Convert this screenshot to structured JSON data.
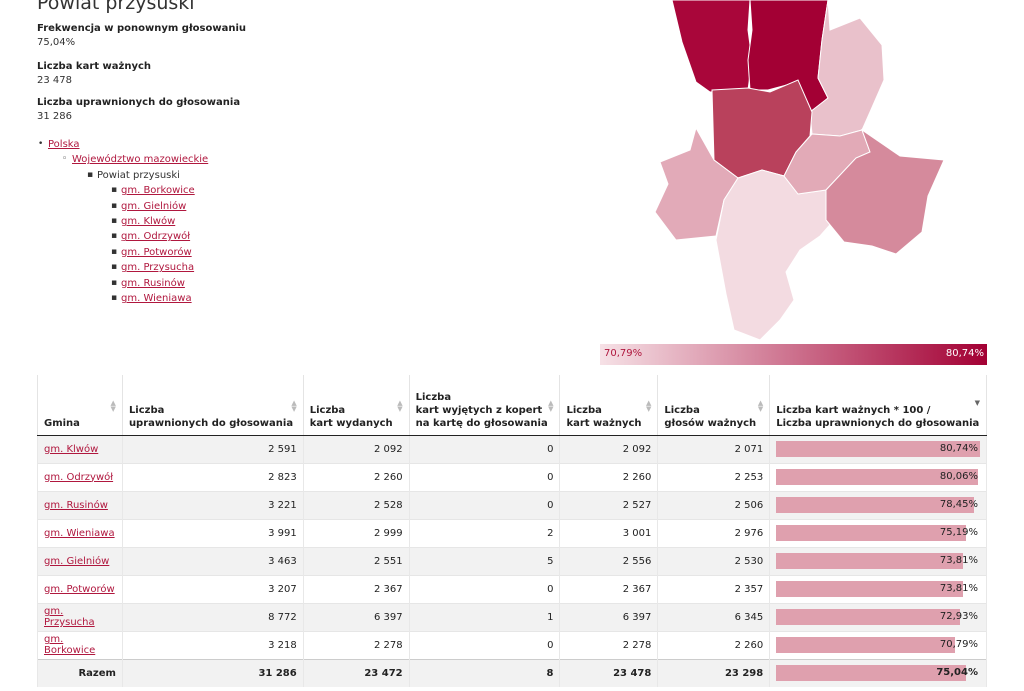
{
  "page_title": "Powiat przysuski",
  "stats": [
    {
      "label": "Frekwencja w ponownym głosowaniu",
      "value": "75,04%"
    },
    {
      "label": "Liczba kart ważnych",
      "value": "23 478"
    },
    {
      "label": "Liczba uprawnionych do głosowania",
      "value": "31 286"
    }
  ],
  "breadcrumb": {
    "country": "Polska",
    "voivodeship": "Województwo mazowieckie",
    "county": "Powiat przysuski",
    "gminas": [
      "gm. Borkowice",
      "gm. Gielniów",
      "gm. Klwów",
      "gm. Odrzywół",
      "gm. Potworów",
      "gm. Przysucha",
      "gm. Rusinów",
      "gm. Wieniawa"
    ]
  },
  "map": {
    "regions": [
      {
        "name": "gm. Klwów",
        "color": "#a30034"
      },
      {
        "name": "gm. Odrzywół",
        "color": "#a9063a"
      },
      {
        "name": "gm. Rusinów",
        "color": "#b9415c"
      },
      {
        "name": "gm. Wieniawa",
        "color": "#d58a9c"
      },
      {
        "name": "gm. Gielniów",
        "color": "#e2aab7"
      },
      {
        "name": "gm. Potworów",
        "color": "#e2aab8"
      },
      {
        "name": "gm. Przysucha",
        "color": "#e9c1cb"
      },
      {
        "name": "gm. Borkowice",
        "color": "#f3dbe1"
      }
    ]
  },
  "legend": {
    "min": "70,79%",
    "max": "80,74%",
    "min_color": "#f6e1e6",
    "max_color": "#a30034"
  },
  "table": {
    "headers": {
      "gmina": "Gmina",
      "c1a": "Liczba",
      "c1b": "uprawnionych do głosowania",
      "c2a": "Liczba",
      "c2b": "kart wydanych",
      "c3a": "Liczba",
      "c3b": "kart wyjętych z kopert",
      "c3c": "na kartę do głosowania",
      "c4a": "Liczba",
      "c4b": "kart ważnych",
      "c5a": "Liczba",
      "c5b": "głosów ważnych",
      "c6a": "Liczba kart ważnych * 100 /",
      "c6b": "Liczba uprawnionych do głosowania"
    },
    "rows": [
      {
        "gmina": "gm. Klwów",
        "uprawnionych": "2 591",
        "wydanych": "2 092",
        "wyjetych": "0",
        "waznych_kart": "2 092",
        "glosow_waznych": "2 071",
        "frekwencja": "80,74%",
        "level": 80.74
      },
      {
        "gmina": "gm. Odrzywół",
        "uprawnionych": "2 823",
        "wydanych": "2 260",
        "wyjetych": "0",
        "waznych_kart": "2 260",
        "glosow_waznych": "2 253",
        "frekwencja": "80,06%",
        "level": 80.06
      },
      {
        "gmina": "gm. Rusinów",
        "uprawnionych": "3 221",
        "wydanych": "2 528",
        "wyjetych": "0",
        "waznych_kart": "2 527",
        "glosow_waznych": "2 506",
        "frekwencja": "78,45%",
        "level": 78.45
      },
      {
        "gmina": "gm. Wieniawa",
        "uprawnionych": "3 991",
        "wydanych": "2 999",
        "wyjetych": "2",
        "waznych_kart": "3 001",
        "glosow_waznych": "2 976",
        "frekwencja": "75,19%",
        "level": 75.19
      },
      {
        "gmina": "gm. Gielniów",
        "uprawnionych": "3 463",
        "wydanych": "2 551",
        "wyjetych": "5",
        "waznych_kart": "2 556",
        "glosow_waznych": "2 530",
        "frekwencja": "73,81%",
        "level": 73.81
      },
      {
        "gmina": "gm. Potworów",
        "uprawnionych": "3 207",
        "wydanych": "2 367",
        "wyjetych": "0",
        "waznych_kart": "2 367",
        "glosow_waznych": "2 357",
        "frekwencja": "73,81%",
        "level": 73.81
      },
      {
        "gmina": "gm. Przysucha",
        "uprawnionych": "8 772",
        "wydanych": "6 397",
        "wyjetych": "1",
        "waznych_kart": "6 397",
        "glosow_waznych": "6 345",
        "frekwencja": "72,93%",
        "level": 72.93
      },
      {
        "gmina": "gm. Borkowice",
        "uprawnionych": "3 218",
        "wydanych": "2 278",
        "wyjetych": "0",
        "waznych_kart": "2 278",
        "glosow_waznych": "2 260",
        "frekwencja": "70,79%",
        "level": 70.79
      }
    ],
    "total": {
      "label": "Razem",
      "uprawnionych": "31 286",
      "wydanych": "23 472",
      "wyjetych": "8",
      "waznych_kart": "23 478",
      "glosow_waznych": "23 298",
      "frekwencja": "75,04%",
      "level": 75.04
    }
  }
}
